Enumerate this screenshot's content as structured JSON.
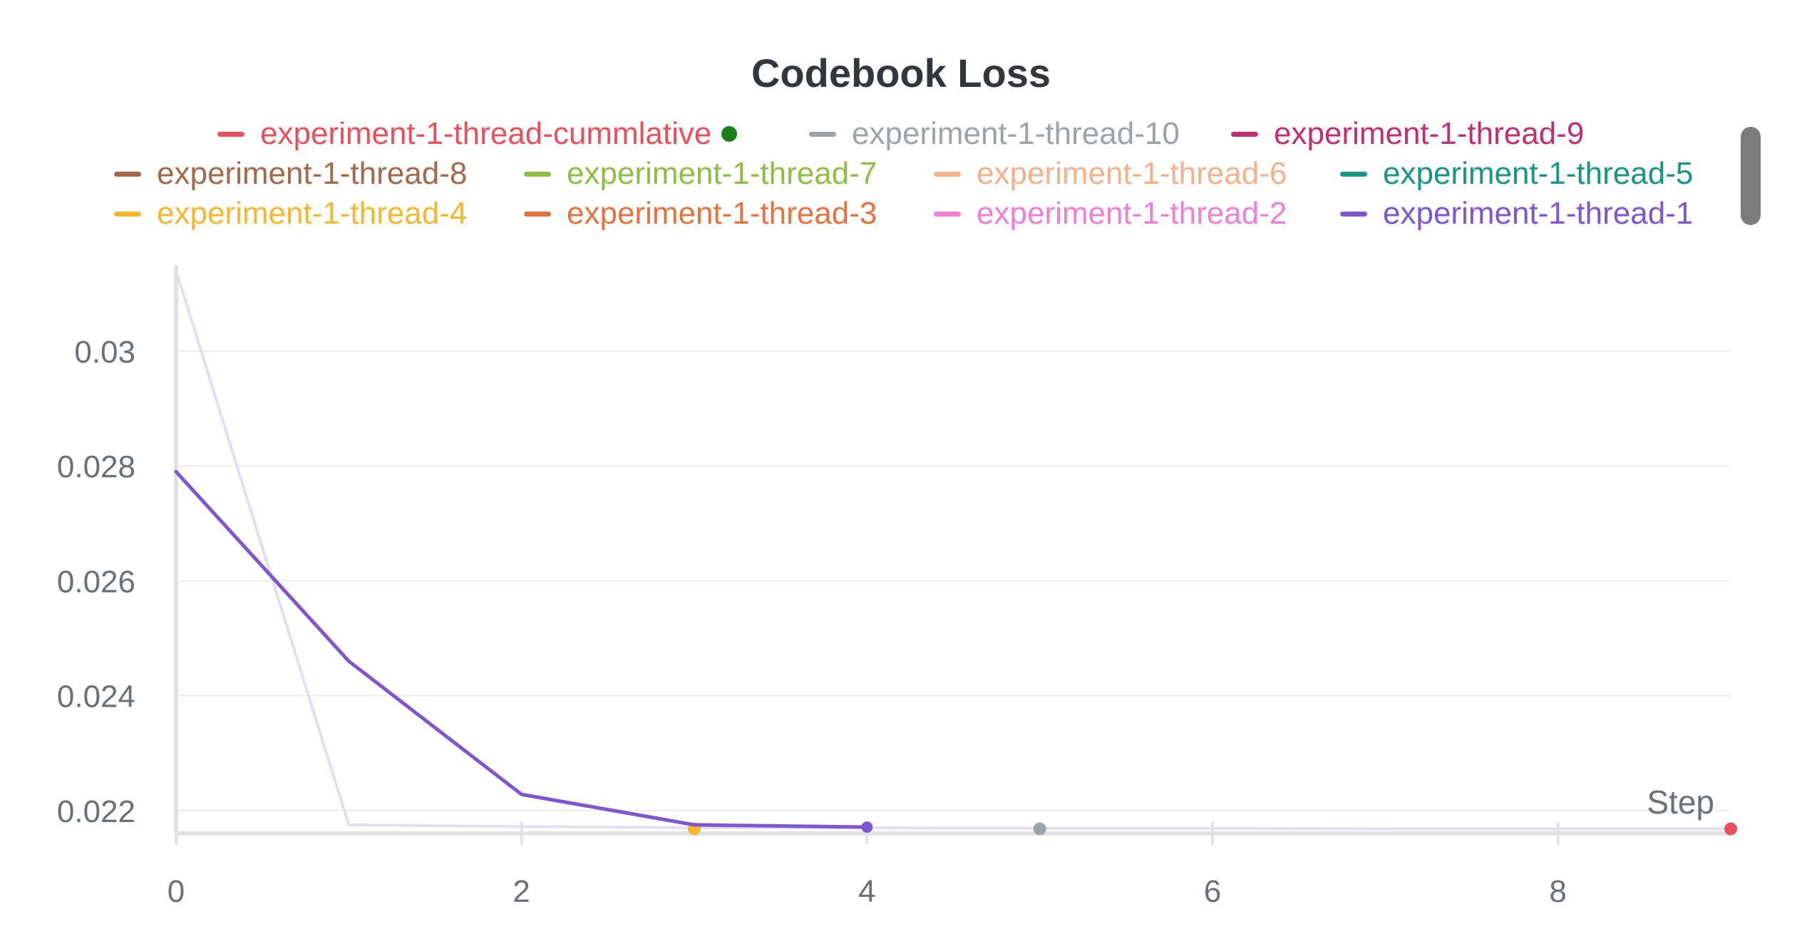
{
  "chart_data": {
    "type": "line",
    "title": "Codebook Loss",
    "xlabel": "Step",
    "ylabel": "",
    "xlim": [
      0,
      9
    ],
    "ylim": [
      0.0216,
      0.0315
    ],
    "x_ticks": [
      0,
      2,
      4,
      6,
      8
    ],
    "y_ticks": [
      0.022,
      0.024,
      0.026,
      0.028,
      0.03
    ],
    "x_tick_labels": [
      "0",
      "2",
      "4",
      "6",
      "8"
    ],
    "y_tick_labels": [
      "0.022",
      "0.024",
      "0.026",
      "0.028",
      "0.03"
    ],
    "grid": true,
    "legend_position": "top",
    "legend_marker_color": "#1a7f1a",
    "series": [
      {
        "name": "experiment-1-thread-cummlative",
        "color": "#e8505b",
        "x": [
          9
        ],
        "y": [
          0.02168
        ]
      },
      {
        "name": "experiment-1-thread-10",
        "color": "#9ea3aa",
        "x": [
          5
        ],
        "y": [
          0.02168
        ]
      },
      {
        "name": "experiment-1-thread-9",
        "color": "#c0306f",
        "x": [],
        "y": []
      },
      {
        "name": "experiment-1-thread-8",
        "color": "#a5684a",
        "x": [],
        "y": []
      },
      {
        "name": "experiment-1-thread-7",
        "color": "#8fbe44",
        "x": [],
        "y": []
      },
      {
        "name": "experiment-1-thread-6",
        "color": "#f4b28a",
        "x": [],
        "y": []
      },
      {
        "name": "experiment-1-thread-5",
        "color": "#1a9583",
        "x": [],
        "y": []
      },
      {
        "name": "experiment-1-thread-4",
        "color": "#f5b731",
        "x": [
          3
        ],
        "y": [
          0.02168
        ]
      },
      {
        "name": "experiment-1-thread-3",
        "color": "#e5733f",
        "x": [],
        "y": []
      },
      {
        "name": "experiment-1-thread-2",
        "color": "#ee7fd8",
        "x": [],
        "y": []
      },
      {
        "name": "experiment-1-thread-1",
        "color": "#7e57d0",
        "x": [
          0,
          1,
          2,
          3,
          4
        ],
        "y": [
          0.0279,
          0.0246,
          0.02228,
          0.02175,
          0.02171
        ]
      }
    ],
    "faded_series": {
      "color": "#e3def3",
      "x": [
        0,
        1,
        2,
        3,
        4,
        5,
        6,
        7,
        8,
        9
      ],
      "y": [
        0.0314,
        0.02175,
        0.02172,
        0.0217,
        0.0217,
        0.02169,
        0.02169,
        0.02168,
        0.02168,
        0.02168
      ]
    }
  }
}
